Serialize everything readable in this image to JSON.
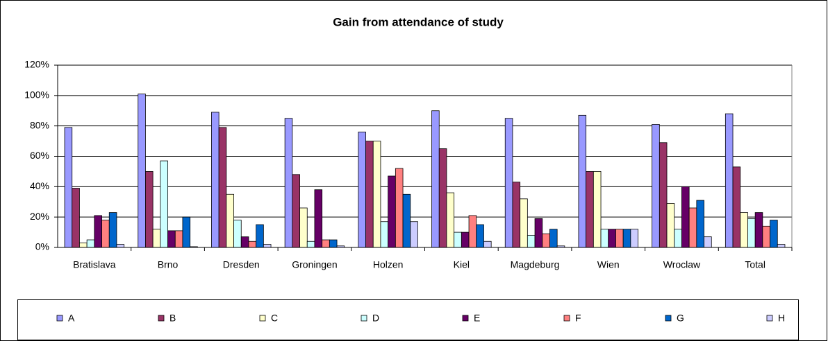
{
  "chart_data": {
    "type": "bar",
    "title": "Gain from attendance of study",
    "categories": [
      "Bratislava",
      "Brno",
      "Dresden",
      "Groningen",
      "Holzen",
      "Kiel",
      "Magdeburg",
      "Wien",
      "Wroclaw",
      "Total"
    ],
    "series": [
      {
        "name": "A",
        "color": "#9999ff",
        "values": [
          79,
          101,
          89,
          85,
          76,
          90,
          85,
          87,
          81,
          88
        ]
      },
      {
        "name": "B",
        "color": "#993366",
        "values": [
          39,
          50,
          79,
          48,
          70,
          65,
          43,
          50,
          69,
          53
        ]
      },
      {
        "name": "C",
        "color": "#ffffcc",
        "values": [
          3,
          12,
          35,
          26,
          70,
          36,
          32,
          50,
          29,
          23
        ]
      },
      {
        "name": "D",
        "color": "#ccffff",
        "values": [
          5,
          57,
          18,
          4,
          17,
          10,
          8,
          12,
          12,
          19
        ]
      },
      {
        "name": "E",
        "color": "#660066",
        "values": [
          21,
          11,
          7,
          38,
          47,
          10,
          19,
          12,
          40,
          23
        ]
      },
      {
        "name": "F",
        "color": "#ff8080",
        "values": [
          18,
          11,
          4,
          5,
          52,
          21,
          9,
          12,
          26,
          14
        ]
      },
      {
        "name": "G",
        "color": "#0066cc",
        "values": [
          23,
          20,
          15,
          5,
          35,
          15,
          12,
          12,
          31,
          18
        ]
      },
      {
        "name": "H",
        "color": "#ccccff",
        "values": [
          2,
          0.5,
          2,
          1,
          17,
          4,
          1,
          12,
          7,
          2
        ]
      }
    ],
    "ylim": [
      0,
      120
    ],
    "yticks": [
      {
        "value": 0,
        "label": "0%"
      },
      {
        "value": 20,
        "label": "20%"
      },
      {
        "value": 40,
        "label": "40%"
      },
      {
        "value": 60,
        "label": "60%"
      },
      {
        "value": 80,
        "label": "80%"
      },
      {
        "value": 100,
        "label": "100%"
      },
      {
        "value": 120,
        "label": "120%"
      }
    ],
    "grid": true,
    "legend": "bottom"
  }
}
